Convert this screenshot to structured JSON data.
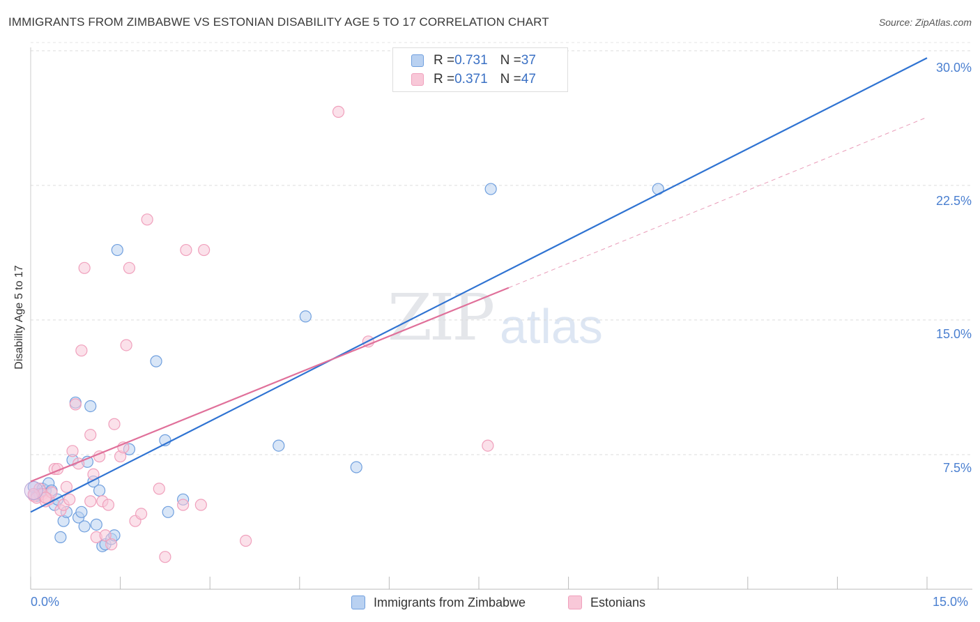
{
  "chart_data": {
    "type": "scatter",
    "title": "IMMIGRANTS FROM ZIMBABWE VS ESTONIAN DISABILITY AGE 5 TO 17 CORRELATION CHART",
    "source": "Source: ZipAtlas.com",
    "xlabel": "",
    "ylabel": "Disability Age 5 to 17",
    "xlim": [
      0,
      15
    ],
    "ylim": [
      0,
      30.5
    ],
    "x_tick_labels": [
      {
        "value": 0,
        "label": "0.0%"
      },
      {
        "value": 15,
        "label": "15.0%"
      }
    ],
    "y_tick_labels": [
      {
        "value": 7.5,
        "label": "7.5%"
      },
      {
        "value": 15,
        "label": "15.0%"
      },
      {
        "value": 22.5,
        "label": "22.5%"
      },
      {
        "value": 30,
        "label": "30.0%"
      }
    ],
    "watermark": {
      "zip": "ZIP",
      "atlas": "atlas"
    },
    "legend": [
      {
        "r_label": "R = ",
        "r": "0.731",
        "n_label": "N = ",
        "n": "37"
      },
      {
        "r_label": "R = ",
        "r": "0.371",
        "n_label": "N = ",
        "n": "47"
      }
    ],
    "series": [
      {
        "name": "Immigrants from Zimbabwe",
        "color": "#6f9fde",
        "fill": "#b9d1f1",
        "line_color": "#2f73d2",
        "trend": {
          "x0": 0,
          "y0": 4.3,
          "x1": 15,
          "y1": 29.6
        },
        "points": [
          [
            0.05,
            5.7
          ],
          [
            0.1,
            5.2
          ],
          [
            0.2,
            5.6
          ],
          [
            0.25,
            5.5
          ],
          [
            0.3,
            5.9
          ],
          [
            0.35,
            5.5
          ],
          [
            0.4,
            4.7
          ],
          [
            0.45,
            5.0
          ],
          [
            0.5,
            2.9
          ],
          [
            0.55,
            3.8
          ],
          [
            0.6,
            4.3
          ],
          [
            0.7,
            7.2
          ],
          [
            0.75,
            10.4
          ],
          [
            0.8,
            4.0
          ],
          [
            0.85,
            4.3
          ],
          [
            0.9,
            3.5
          ],
          [
            0.95,
            7.1
          ],
          [
            1.0,
            10.2
          ],
          [
            1.05,
            6.0
          ],
          [
            1.1,
            3.6
          ],
          [
            1.15,
            5.5
          ],
          [
            1.2,
            2.4
          ],
          [
            1.25,
            2.5
          ],
          [
            1.35,
            2.8
          ],
          [
            1.4,
            3.0
          ],
          [
            1.45,
            18.9
          ],
          [
            1.65,
            7.8
          ],
          [
            2.1,
            12.7
          ],
          [
            2.25,
            8.3
          ],
          [
            2.3,
            4.3
          ],
          [
            2.55,
            5.0
          ],
          [
            4.15,
            8.0
          ],
          [
            4.6,
            15.2
          ],
          [
            5.45,
            6.8
          ],
          [
            7.7,
            22.3
          ],
          [
            10.5,
            22.3
          ],
          [
            0.15,
            5.3
          ]
        ]
      },
      {
        "name": "Estonians",
        "color": "#f0a0bc",
        "fill": "#f8c8d8",
        "line_color": "#e0709a",
        "trend": {
          "x0": 0,
          "y0": 6.0,
          "x1": 8.0,
          "y1": 16.8
        },
        "trend_extended": {
          "x0": 8.0,
          "y0": 16.8,
          "x1": 15,
          "y1": 26.3
        },
        "points": [
          [
            0.05,
            5.2
          ],
          [
            0.1,
            5.1
          ],
          [
            0.15,
            5.6
          ],
          [
            0.2,
            5.3
          ],
          [
            0.25,
            4.9
          ],
          [
            0.3,
            5.0
          ],
          [
            0.35,
            5.4
          ],
          [
            0.4,
            6.7
          ],
          [
            0.45,
            6.7
          ],
          [
            0.5,
            4.4
          ],
          [
            0.55,
            4.7
          ],
          [
            0.6,
            5.7
          ],
          [
            0.65,
            5.0
          ],
          [
            0.7,
            7.7
          ],
          [
            0.75,
            10.3
          ],
          [
            0.8,
            7.0
          ],
          [
            0.85,
            13.3
          ],
          [
            0.9,
            17.9
          ],
          [
            1.0,
            8.6
          ],
          [
            1.05,
            6.4
          ],
          [
            1.1,
            2.9
          ],
          [
            1.15,
            7.4
          ],
          [
            1.2,
            4.9
          ],
          [
            1.25,
            3.0
          ],
          [
            1.3,
            4.7
          ],
          [
            1.35,
            2.5
          ],
          [
            1.4,
            9.2
          ],
          [
            1.5,
            7.4
          ],
          [
            1.55,
            7.9
          ],
          [
            1.6,
            13.6
          ],
          [
            1.65,
            17.9
          ],
          [
            1.75,
            3.8
          ],
          [
            1.85,
            4.2
          ],
          [
            1.95,
            20.6
          ],
          [
            2.15,
            5.6
          ],
          [
            2.25,
            1.8
          ],
          [
            2.55,
            4.7
          ],
          [
            2.6,
            18.9
          ],
          [
            2.85,
            4.7
          ],
          [
            2.9,
            18.9
          ],
          [
            3.6,
            2.7
          ],
          [
            5.15,
            26.6
          ],
          [
            5.65,
            13.8
          ],
          [
            7.65,
            8.0
          ],
          [
            0.05,
            5.3
          ],
          [
            1.0,
            4.9
          ],
          [
            0.25,
            5.1
          ]
        ]
      }
    ]
  }
}
